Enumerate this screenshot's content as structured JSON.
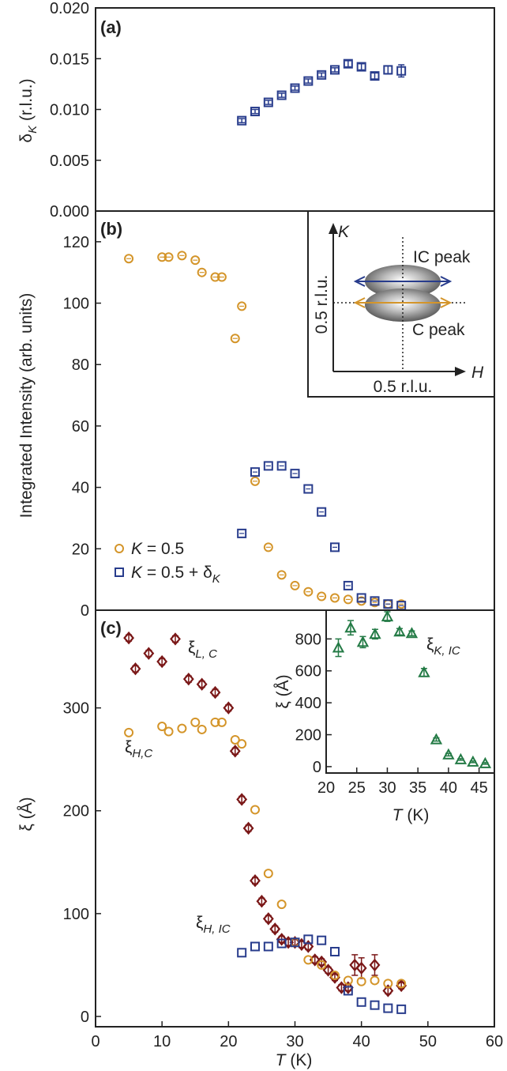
{
  "colors": {
    "orange": "#D4952A",
    "navy": "#283C8C",
    "maroon": "#7A1717",
    "green": "#237A45",
    "axis": "#222222"
  },
  "chart_data": [
    {
      "panel": "(a)",
      "type": "scatter",
      "ylabel_main": "δ",
      "ylabel_sub": "K",
      "ylabel_rest": " (r.l.u.)",
      "ylim": [
        0,
        0.02
      ],
      "yticks": [
        "0.000",
        "0.005",
        "0.010",
        "0.015",
        "0.020"
      ],
      "xlim": [
        0,
        60
      ],
      "series": [
        {
          "marker": "square",
          "color": "navy",
          "x": [
            22,
            24,
            26,
            28,
            30,
            32,
            34,
            36,
            38,
            40,
            42,
            44,
            46
          ],
          "y": [
            0.0089,
            0.0098,
            0.0107,
            0.0114,
            0.0121,
            0.0128,
            0.0134,
            0.0139,
            0.0145,
            0.0142,
            0.0133,
            0.0139,
            0.0138
          ],
          "err": [
            0.0002,
            0.0002,
            0.0002,
            0.0002,
            0.0002,
            0.0002,
            0.0002,
            0.0002,
            0.0003,
            0.0003,
            0.0003,
            0.0004,
            0.0006
          ]
        }
      ]
    },
    {
      "panel": "(b)",
      "type": "scatter",
      "ylabel": "Integrated Intensity (arb. units)",
      "ylim": [
        0,
        130
      ],
      "yticks": [
        "0",
        "20",
        "40",
        "60",
        "80",
        "100",
        "120"
      ],
      "xlim": [
        0,
        60
      ],
      "series": [
        {
          "name": "K = 0.5",
          "legend_pre": "K",
          "legend_post": " = 0.5",
          "marker": "circle",
          "color": "orange",
          "x": [
            5,
            10,
            11,
            13,
            15,
            16,
            18,
            19,
            21,
            22,
            24,
            26,
            28,
            30,
            32,
            34,
            36,
            38,
            40,
            42,
            44,
            46
          ],
          "y": [
            114.5,
            115,
            115,
            115.5,
            114,
            110,
            108.5,
            108.5,
            88.5,
            99,
            42,
            20.5,
            11.5,
            8,
            6,
            4.5,
            4,
            3.5,
            3,
            2.5,
            2,
            2
          ]
        },
        {
          "name": "K = 0.5 + δK",
          "legend_pre": "K",
          "legend_post": " = 0.5 + δ",
          "legend_sub": "K",
          "marker": "square",
          "color": "navy",
          "x": [
            22,
            24,
            26,
            28,
            30,
            32,
            34,
            36,
            38,
            40,
            42,
            44,
            46
          ],
          "y": [
            25,
            45,
            47,
            47,
            44.5,
            39.5,
            32,
            20.5,
            8,
            4,
            3,
            2,
            1.5
          ]
        }
      ],
      "inset": {
        "axis_x": "H",
        "axis_y": "K",
        "label_x": "0.5 r.l.u.",
        "label_y": "0.5 r.l.u.",
        "peak_ic": "IC peak",
        "peak_c": "C peak"
      }
    },
    {
      "panel": "(c)",
      "type": "scatter",
      "ylabel": "ξ (Å)",
      "ylim": [
        -10,
        395
      ],
      "yticks": [
        "0",
        "100",
        "200",
        "300"
      ],
      "xlim": [
        0,
        60
      ],
      "xticks": [
        "0",
        "10",
        "20",
        "30",
        "40",
        "50",
        "60"
      ],
      "xlabel_main": "T",
      "xlabel_rest": " (K)",
      "series": [
        {
          "label_main": "ξ",
          "label_sub": "L, C",
          "marker": "diamond",
          "color": "maroon",
          "x": [
            5,
            6,
            8,
            10,
            12,
            14,
            16,
            18,
            20,
            21,
            22,
            23,
            24,
            25,
            26,
            27,
            28,
            29,
            30,
            31,
            32,
            33,
            34,
            35,
            36,
            37,
            38,
            39,
            40,
            42,
            44,
            46
          ],
          "y": [
            368,
            338,
            353,
            345,
            367,
            328,
            323,
            315,
            300,
            258,
            211,
            183,
            132,
            112,
            95,
            85,
            75,
            72,
            72,
            70,
            68,
            55,
            53,
            45,
            38,
            28,
            28,
            50,
            47,
            50,
            25,
            30
          ],
          "err": [
            3,
            3,
            3,
            3,
            3,
            3,
            3,
            3,
            3,
            3,
            3,
            3,
            3,
            3,
            3,
            3,
            3,
            3,
            3,
            3,
            3,
            3,
            3,
            3,
            3,
            3,
            3,
            10,
            10,
            10,
            3,
            3
          ]
        },
        {
          "label_main": "ξ",
          "label_sub": "H,C",
          "marker": "circle",
          "color": "orange",
          "x": [
            5,
            10,
            11,
            13,
            15,
            16,
            18,
            19,
            21,
            22,
            24,
            26,
            28,
            30,
            32,
            34,
            36,
            38,
            40,
            42,
            44,
            46
          ],
          "y": [
            276,
            282,
            277,
            280,
            286,
            279,
            286,
            286,
            269,
            265,
            201,
            139,
            109,
            72,
            55,
            50,
            40,
            35,
            34,
            35,
            32,
            32
          ]
        },
        {
          "label_main": "ξ",
          "label_sub": "H, IC",
          "marker": "square",
          "color": "navy",
          "x": [
            22,
            24,
            26,
            28,
            30,
            32,
            34,
            36,
            38,
            40,
            42,
            44,
            46
          ],
          "y": [
            62,
            68,
            68,
            71,
            72,
            75,
            74,
            63,
            25,
            14,
            11,
            8,
            7
          ]
        }
      ],
      "inset": {
        "ylabel": "ξ (Å)",
        "xlabel_main": "T",
        "xlabel_rest": " (K)",
        "xlim": [
          20,
          47.5
        ],
        "xticks": [
          "20",
          "25",
          "30",
          "35",
          "40",
          "45"
        ],
        "ylim": [
          -40,
          980
        ],
        "yticks": [
          "0",
          "200",
          "400",
          "600",
          "800"
        ],
        "series_label_main": "ξ",
        "series_label_sub": "K, IC",
        "marker": "triangle",
        "color": "green",
        "x": [
          22,
          24,
          26,
          28,
          30,
          32,
          34,
          36,
          38,
          40,
          42,
          44,
          46
        ],
        "y": [
          745,
          870,
          780,
          830,
          940,
          845,
          835,
          590,
          170,
          75,
          45,
          30,
          20
        ],
        "err": [
          55,
          45,
          35,
          30,
          30,
          20,
          15,
          25,
          10,
          8,
          5,
          5,
          5
        ]
      }
    }
  ]
}
